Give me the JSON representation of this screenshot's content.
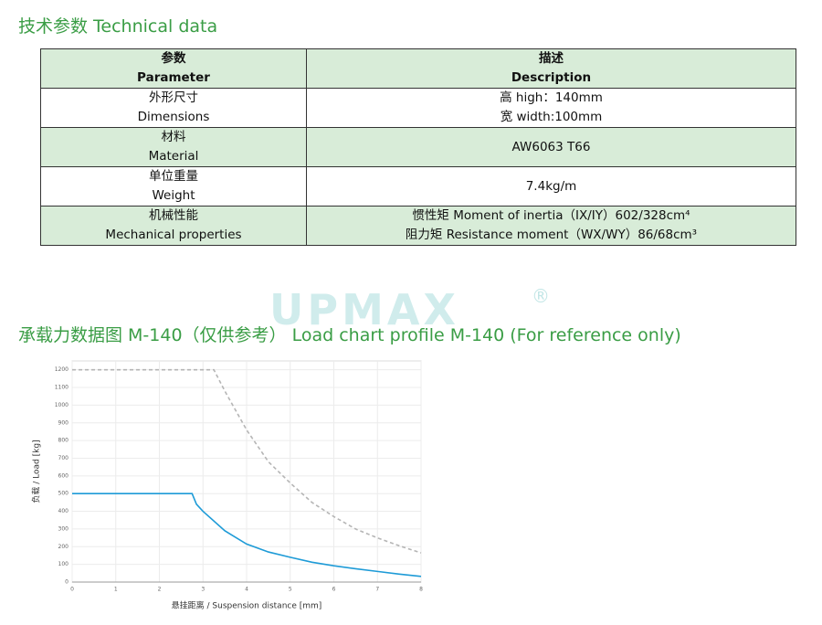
{
  "header": {
    "title": "技术参数 Technical data"
  },
  "table": {
    "header": [
      [
        "参数",
        "Parameter"
      ],
      [
        "描述",
        "Description"
      ]
    ],
    "rows": [
      [
        [
          "外形尺寸",
          "Dimensions"
        ],
        [
          "高 high：140mm",
          "宽 width:100mm"
        ]
      ],
      [
        [
          "材料",
          "Material"
        ],
        [
          "AW6063 T66"
        ]
      ],
      [
        [
          "单位重量",
          "Weight"
        ],
        [
          "7.4kg/m"
        ]
      ],
      [
        [
          "机械性能",
          "Mechanical properties"
        ],
        [
          "惯性矩 Moment of inertia（IX/IY）602/328cm⁴",
          "阻力矩 Resistance moment（WX/WY）86/68cm³"
        ]
      ]
    ]
  },
  "watermark": {
    "text": "UPMAX",
    "mark": "®"
  },
  "section_title": "承载力数据图 M-140（仅供参考） Load chart profile M-140 (For reference only)",
  "chart_data": {
    "type": "line",
    "x_label": "悬挂距离 / Suspension distance [mm]",
    "y_label": "负载 / Load [kg]",
    "xlim": [
      0,
      8
    ],
    "xticks": [
      0,
      1,
      2,
      3,
      4,
      5,
      6,
      7,
      8
    ],
    "ylim": [
      0,
      1250
    ],
    "yticks": [
      0,
      100,
      200,
      300,
      400,
      500,
      600,
      700,
      800,
      900,
      1000,
      1100,
      1200
    ],
    "grid": true,
    "series": [
      {
        "color": "#b5b5b5",
        "dashed": true,
        "x": [
          0,
          3.25,
          3.5,
          4,
          4.5,
          5,
          5.5,
          6,
          6.5,
          7,
          7.5,
          8
        ],
        "values": [
          1200,
          1200,
          1080,
          860,
          680,
          560,
          450,
          370,
          300,
          250,
          205,
          165
        ]
      },
      {
        "color": "#1e9bd7",
        "dashed": false,
        "x": [
          0,
          2.75,
          2.85,
          3,
          3.5,
          4,
          4.5,
          5,
          5.5,
          6,
          6.5,
          7,
          7.5,
          8
        ],
        "values": [
          500,
          500,
          440,
          400,
          290,
          215,
          170,
          140,
          112,
          92,
          75,
          60,
          45,
          32
        ]
      }
    ]
  }
}
